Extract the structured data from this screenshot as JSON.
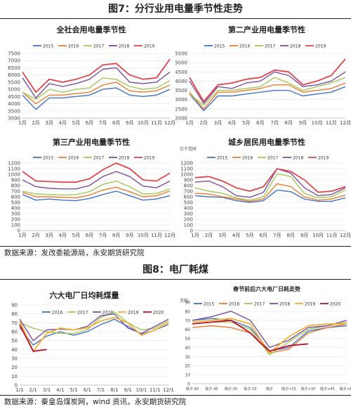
{
  "fig7": {
    "title": "图7：分行业用电量季节性走势"
  },
  "fig8": {
    "title": "图8：电厂耗煤"
  },
  "source1": "数据来源：发改委能源局，永安期货研究院",
  "source2": "数据来源：秦皇岛煤炭网，wind 资讯，永安期货研究院",
  "colors": {
    "2015": "#4472C4",
    "2016": "#ED7D31",
    "2017": "#A5C85A",
    "2018": "#7B4FA0",
    "2019": "#E0474C",
    "2020": "#C0102A",
    "2015b": "#4472C4",
    "2017b": "#A5C85A",
    "2019b": "#F2B134"
  },
  "chart_data": [
    {
      "type": "line",
      "title": "全社会用电量季节性",
      "categories": [
        "1月",
        "2月",
        "3月",
        "4月",
        "5月",
        "6月",
        "7月",
        "8月",
        "9月",
        "10月",
        "11月",
        "12月"
      ],
      "ylim": [
        3000,
        7500
      ],
      "yticks": [
        3000,
        3500,
        4000,
        4500,
        5000,
        5500,
        6000,
        6500,
        7000,
        7500
      ],
      "series": [
        {
          "name": "2015",
          "color_key": "2015",
          "values": [
            4600,
            3600,
            4400,
            4400,
            4500,
            4600,
            5000,
            5100,
            4600,
            4500,
            4600,
            5000
          ]
        },
        {
          "name": "2016",
          "color_key": "2016",
          "values": [
            4800,
            4000,
            4600,
            4600,
            4700,
            4800,
            5300,
            5500,
            4900,
            4800,
            4900,
            5300
          ]
        },
        {
          "name": "2017",
          "color_key": "2017",
          "values": [
            4800,
            4300,
            5000,
            4800,
            5000,
            5100,
            5800,
            5700,
            5200,
            5000,
            5100,
            5600
          ]
        },
        {
          "name": "2018",
          "color_key": "2018",
          "values": [
            5800,
            4400,
            5400,
            5200,
            5400,
            5700,
            6400,
            6500,
            5500,
            5400,
            5500,
            6200
          ]
        },
        {
          "name": "2019",
          "color_key": "2019",
          "values": [
            6200,
            4800,
            5700,
            5500,
            5700,
            6000,
            6700,
            6800,
            6000,
            5700,
            5800,
            7100
          ]
        }
      ]
    },
    {
      "type": "line",
      "title": "第二产业用电量季节性",
      "categories": [
        "1月",
        "2月",
        "3月",
        "4月",
        "5月",
        "6月",
        "7月",
        "8月",
        "9月",
        "10月",
        "11月",
        "12月"
      ],
      "ylim": [
        2000,
        5500
      ],
      "yticks": [
        2000,
        2500,
        3000,
        3500,
        4000,
        4500,
        5000,
        5500
      ],
      "series": [
        {
          "name": "2015",
          "color_key": "2015",
          "values": [
            3300,
            2400,
            3200,
            3200,
            3300,
            3400,
            3500,
            3500,
            3200,
            3300,
            3400,
            3700
          ]
        },
        {
          "name": "2016",
          "color_key": "2016",
          "values": [
            3400,
            2500,
            3400,
            3400,
            3500,
            3600,
            3800,
            3800,
            3400,
            3500,
            3600,
            3900
          ]
        },
        {
          "name": "2017",
          "color_key": "2017",
          "values": [
            3300,
            2700,
            3500,
            3500,
            3600,
            3700,
            4200,
            3900,
            3500,
            3700,
            3900,
            4200
          ]
        },
        {
          "name": "2018",
          "color_key": "2018",
          "values": [
            4000,
            2800,
            3700,
            3600,
            3900,
            4000,
            4500,
            4300,
            3700,
            3800,
            4000,
            4500
          ]
        },
        {
          "name": "2019",
          "color_key": "2019",
          "values": [
            4200,
            2900,
            3800,
            3900,
            4100,
            4200,
            4600,
            4500,
            3800,
            4000,
            4300,
            5200
          ]
        }
      ]
    },
    {
      "type": "line",
      "title": "第三产业用电量季节性",
      "categories": [
        "1月",
        "2月",
        "3月",
        "4月",
        "5月",
        "6月",
        "7月",
        "8月",
        "9月",
        "10月",
        "11月",
        "12月"
      ],
      "ylim": [
        0,
        1200
      ],
      "yticks": [
        0,
        100,
        200,
        300,
        400,
        500,
        600,
        700,
        800,
        900,
        1000,
        1100,
        1200
      ],
      "series": [
        {
          "name": "2015",
          "color_key": "2015",
          "values": [
            640,
            540,
            560,
            540,
            530,
            570,
            640,
            700,
            620,
            540,
            560,
            620
          ]
        },
        {
          "name": "2016",
          "color_key": "2016",
          "values": [
            680,
            600,
            600,
            590,
            580,
            630,
            720,
            770,
            690,
            600,
            620,
            700
          ]
        },
        {
          "name": "2017",
          "color_key": "2017",
          "values": [
            700,
            650,
            640,
            630,
            640,
            690,
            820,
            880,
            780,
            650,
            660,
            740
          ]
        },
        {
          "name": "2018",
          "color_key": "2018",
          "values": [
            900,
            780,
            750,
            740,
            740,
            800,
            960,
            1050,
            960,
            790,
            760,
            880
          ]
        },
        {
          "name": "2019",
          "color_key": "2019",
          "values": [
            1050,
            880,
            870,
            860,
            860,
            920,
            1080,
            1200,
            1100,
            900,
            880,
            1020
          ]
        }
      ]
    },
    {
      "type": "line",
      "title": "城乡居民用电量季节性",
      "unit_label": "亿千瓦时",
      "categories": [
        "1月",
        "2月",
        "3月",
        "4月",
        "5月",
        "6月",
        "7月",
        "8月",
        "9月",
        "10月",
        "11月",
        "12月"
      ],
      "ylim": [
        0,
        1200
      ],
      "yticks": [
        0,
        100,
        200,
        300,
        400,
        500,
        600,
        700,
        800,
        900,
        1000,
        1100,
        1200
      ],
      "series": [
        {
          "name": "2015",
          "color_key": "2015",
          "values": [
            620,
            600,
            590,
            530,
            500,
            530,
            720,
            690,
            560,
            520,
            520,
            580
          ]
        },
        {
          "name": "2016",
          "color_key": "2016",
          "values": [
            660,
            650,
            600,
            560,
            520,
            560,
            830,
            780,
            600,
            540,
            560,
            630
          ]
        },
        {
          "name": "2017",
          "color_key": "2017",
          "values": [
            760,
            700,
            660,
            580,
            540,
            600,
            1010,
            960,
            660,
            580,
            600,
            720
          ]
        },
        {
          "name": "2018",
          "color_key": "2018",
          "values": [
            860,
            880,
            780,
            620,
            590,
            680,
            1100,
            1020,
            760,
            620,
            640,
            760
          ]
        },
        {
          "name": "2019",
          "color_key": "2019",
          "values": [
            940,
            960,
            880,
            760,
            700,
            780,
            1100,
            1050,
            900,
            680,
            700,
            780
          ]
        }
      ]
    },
    {
      "type": "line",
      "title": "六大电厂日均耗煤量",
      "categories": [
        "1/1",
        "2/1",
        "3/1",
        "4/1",
        "5/1",
        "6/1",
        "7/1",
        "8/1",
        "9/1",
        "10/1",
        "11/1",
        "12/1"
      ],
      "ylim": [
        0,
        90
      ],
      "yticks": [
        0,
        10,
        20,
        30,
        40,
        50,
        60,
        70,
        80,
        90
      ],
      "series": [
        {
          "name": "2016",
          "color_key": "2015",
          "values": [
            65,
            45,
            55,
            60,
            56,
            60,
            68,
            74,
            66,
            57,
            62,
            68
          ]
        },
        {
          "name": "2017",
          "color_key": "2017",
          "values": [
            70,
            64,
            60,
            58,
            58,
            62,
            76,
            82,
            70,
            62,
            64,
            72
          ]
        },
        {
          "name": "2018",
          "color_key": "2018",
          "values": [
            74,
            50,
            62,
            63,
            62,
            66,
            78,
            80,
            64,
            58,
            66,
            74
          ]
        },
        {
          "name": "2019",
          "color_key": "2019b",
          "values": [
            72,
            38,
            58,
            64,
            62,
            64,
            72,
            76,
            70,
            56,
            62,
            70
          ]
        },
        {
          "name": "2020",
          "color_key": "2020",
          "values": [
            68,
            38,
            40,
            null,
            null,
            null,
            null,
            null,
            null,
            null,
            null,
            null
          ]
        }
      ]
    },
    {
      "type": "line",
      "title": "春节前后六大电厂日耗走势",
      "unit_label": "万吨",
      "categories": [
        "除夕-60",
        "除夕-45",
        "除夕-30",
        "除夕-15",
        "除夕",
        "除夕+15",
        "除夕+30",
        "除夕+45",
        "除夕+60"
      ],
      "ylim": [
        0,
        90
      ],
      "yticks": [
        0,
        10,
        20,
        30,
        40,
        50,
        60,
        70,
        80,
        90
      ],
      "series": [
        {
          "name": "2015",
          "color_key": "2015b",
          "values": [
            70,
            72,
            70,
            62,
            36,
            40,
            58,
            62,
            64
          ]
        },
        {
          "name": "2016",
          "color_key": "2016",
          "values": [
            62,
            64,
            62,
            56,
            34,
            38,
            56,
            62,
            66
          ]
        },
        {
          "name": "2017",
          "color_key": "2017b",
          "values": [
            66,
            68,
            68,
            60,
            32,
            46,
            60,
            64,
            68
          ]
        },
        {
          "name": "2018",
          "color_key": "2018",
          "values": [
            70,
            74,
            80,
            70,
            40,
            48,
            62,
            64,
            70
          ]
        },
        {
          "name": "2019",
          "color_key": "2019b",
          "values": [
            68,
            70,
            72,
            66,
            34,
            52,
            64,
            66,
            66
          ]
        },
        {
          "name": "2020",
          "color_key": "2020",
          "values": [
            66,
            68,
            70,
            56,
            36,
            42,
            44,
            null,
            null
          ]
        }
      ]
    }
  ]
}
